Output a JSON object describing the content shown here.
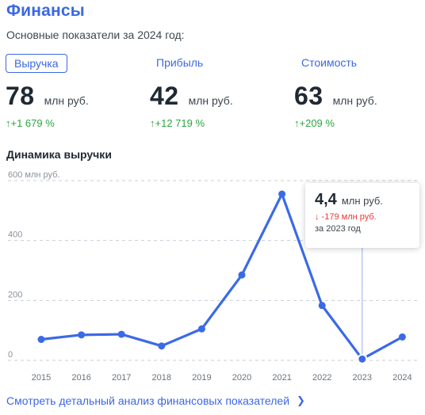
{
  "header": {
    "title": "Финансы",
    "subtitle": "Основные показатели за 2024 год:"
  },
  "metrics": [
    {
      "label": "Выручка",
      "value": "78",
      "unit": "млн руб.",
      "change": "↑+1 679 %",
      "active": true
    },
    {
      "label": "Прибыль",
      "value": "42",
      "unit": "млн руб.",
      "change": "↑+12 719 %",
      "active": false
    },
    {
      "label": "Стоимость",
      "value": "63",
      "unit": "млн руб.",
      "change": "↑+209 %",
      "active": false
    }
  ],
  "colors": {
    "accent": "#3b68e3",
    "line": "#3b6ae6",
    "positive": "#2aa63f",
    "negative": "#e53935",
    "grid": "#c9ced6"
  },
  "chart_section_title": "Динамика выручки",
  "chart_data": {
    "type": "line",
    "title": "Динамика выручки",
    "x": [
      "2015",
      "2016",
      "2017",
      "2018",
      "2019",
      "2020",
      "2021",
      "2022",
      "2023",
      "2024"
    ],
    "series": [
      {
        "values": [
          70,
          85,
          87,
          48,
          105,
          285,
          555,
          183,
          4.4,
          78
        ]
      }
    ],
    "ylim": [
      0,
      600
    ],
    "yticks": [
      {
        "value": 0,
        "label": "0"
      },
      {
        "value": 200,
        "label": "200"
      },
      {
        "value": 400,
        "label": "400"
      },
      {
        "value": 600,
        "label": "600 млн руб."
      }
    ],
    "grid": true,
    "highlighted_index": 8
  },
  "tooltip": {
    "value": "4,4",
    "unit": "млн руб.",
    "change": "↓ -179 млн руб.",
    "period": "за 2023 год"
  },
  "footer_link": {
    "label": "Смотреть детальный анализ финансовых показателей",
    "icon": "chevron-right-icon"
  }
}
